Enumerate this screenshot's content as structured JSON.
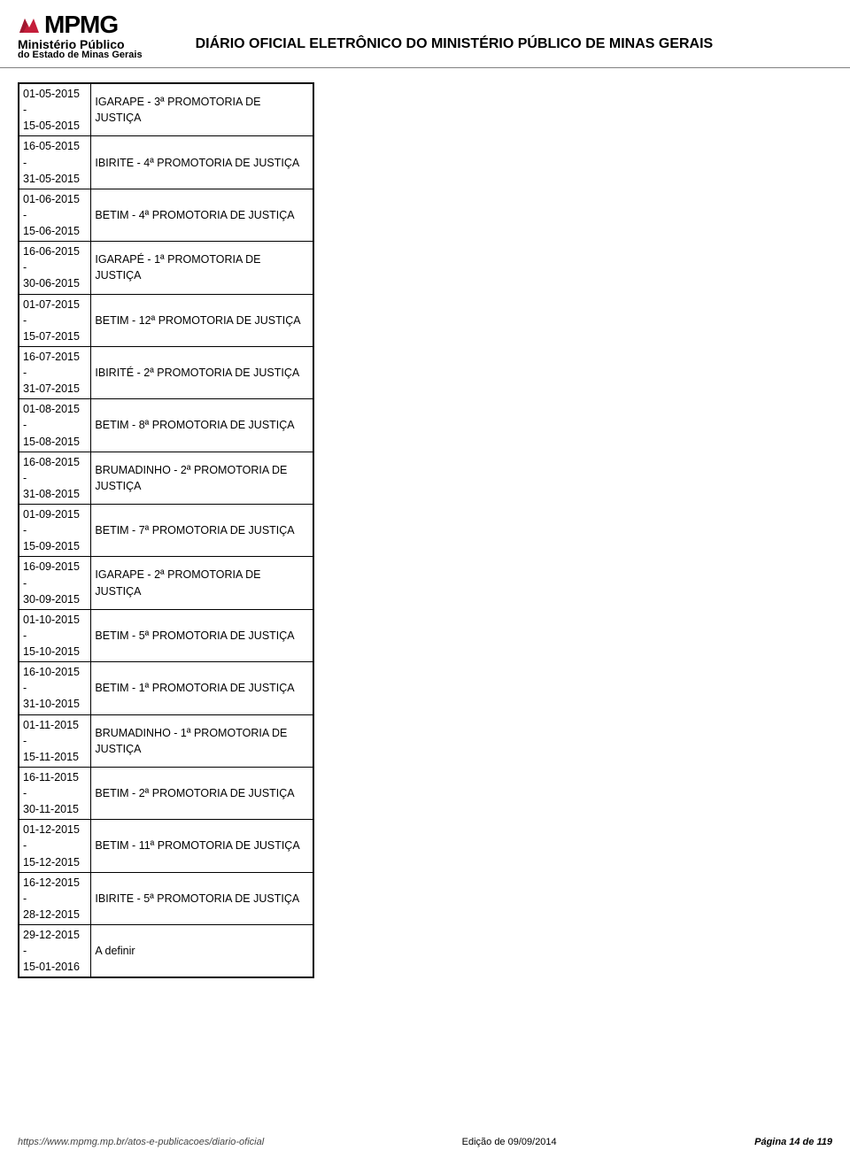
{
  "header": {
    "logo_text": "MPMG",
    "logo_sub1": "Ministério Público",
    "logo_sub2": "do Estado de Minas Gerais",
    "title": "DIÁRIO OFICIAL ELETRÔNICO DO MINISTÉRIO PÚBLICO DE MINAS GERAIS",
    "logo_color_accent": "#c41e3a",
    "logo_color_text": "#000000"
  },
  "table": {
    "border_color": "#000000",
    "font_size": 12.5,
    "rows": [
      {
        "date_start": "01-05-2015",
        "dash": "-",
        "date_end": "15-05-2015",
        "desc": "IGARAPE - 3ª PROMOTORIA DE JUSTIÇA"
      },
      {
        "date_start": "16-05-2015",
        "dash": "-",
        "date_end": "31-05-2015",
        "desc": "IBIRITE - 4ª PROMOTORIA DE JUSTIÇA"
      },
      {
        "date_start": "01-06-2015",
        "dash": "-",
        "date_end": "15-06-2015",
        "desc": "BETIM - 4ª PROMOTORIA DE JUSTIÇA"
      },
      {
        "date_start": "16-06-2015",
        "dash": "-",
        "date_end": "30-06-2015",
        "desc": "IGARAPÉ - 1ª PROMOTORIA DE JUSTIÇA"
      },
      {
        "date_start": "01-07-2015",
        "dash": "-",
        "date_end": "15-07-2015",
        "desc": "BETIM - 12ª PROMOTORIA DE JUSTIÇA"
      },
      {
        "date_start": "16-07-2015",
        "dash": "-",
        "date_end": "31-07-2015",
        "desc": "IBIRITÉ - 2ª PROMOTORIA DE JUSTIÇA"
      },
      {
        "date_start": "01-08-2015",
        "dash": "-",
        "date_end": "15-08-2015",
        "desc": "BETIM - 8ª PROMOTORIA DE JUSTIÇA"
      },
      {
        "date_start": "16-08-2015",
        "dash": "-",
        "date_end": "31-08-2015",
        "desc": "BRUMADINHO - 2ª PROMOTORIA DE JUSTIÇA"
      },
      {
        "date_start": "01-09-2015",
        "dash": "-",
        "date_end": "15-09-2015",
        "desc": "BETIM - 7ª PROMOTORIA DE JUSTIÇA"
      },
      {
        "date_start": "16-09-2015",
        "dash": "-",
        "date_end": "30-09-2015",
        "desc": "IGARAPE - 2ª PROMOTORIA DE JUSTIÇA"
      },
      {
        "date_start": "01-10-2015",
        "dash": "-",
        "date_end": "15-10-2015",
        "desc": "BETIM - 5ª PROMOTORIA DE JUSTIÇA"
      },
      {
        "date_start": "16-10-2015",
        "dash": "-",
        "date_end": "31-10-2015",
        "desc": "BETIM - 1ª PROMOTORIA DE JUSTIÇA"
      },
      {
        "date_start": "01-11-2015",
        "dash": "-",
        "date_end": "15-11-2015",
        "desc": "BRUMADINHO - 1ª PROMOTORIA DE JUSTIÇA"
      },
      {
        "date_start": "16-11-2015",
        "dash": "-",
        "date_end": "30-11-2015",
        "desc": "BETIM - 2ª PROMOTORIA DE JUSTIÇA"
      },
      {
        "date_start": "01-12-2015",
        "dash": "-",
        "date_end": "15-12-2015",
        "desc": "BETIM - 11ª PROMOTORIA DE JUSTIÇA"
      },
      {
        "date_start": "16-12-2015",
        "dash": "-",
        "date_end": "28-12-2015",
        "desc": "IBIRITE - 5ª PROMOTORIA DE JUSTIÇA"
      },
      {
        "date_start": "29-12-2015",
        "dash": "-",
        "date_end": "15-01-2016",
        "desc": "A definir"
      }
    ]
  },
  "footer": {
    "url": "https://www.mpmg.mp.br/atos-e-publicacoes/diario-oficial",
    "edition": "Edição de 09/09/2014",
    "page_label": "Página 14 de 119"
  }
}
